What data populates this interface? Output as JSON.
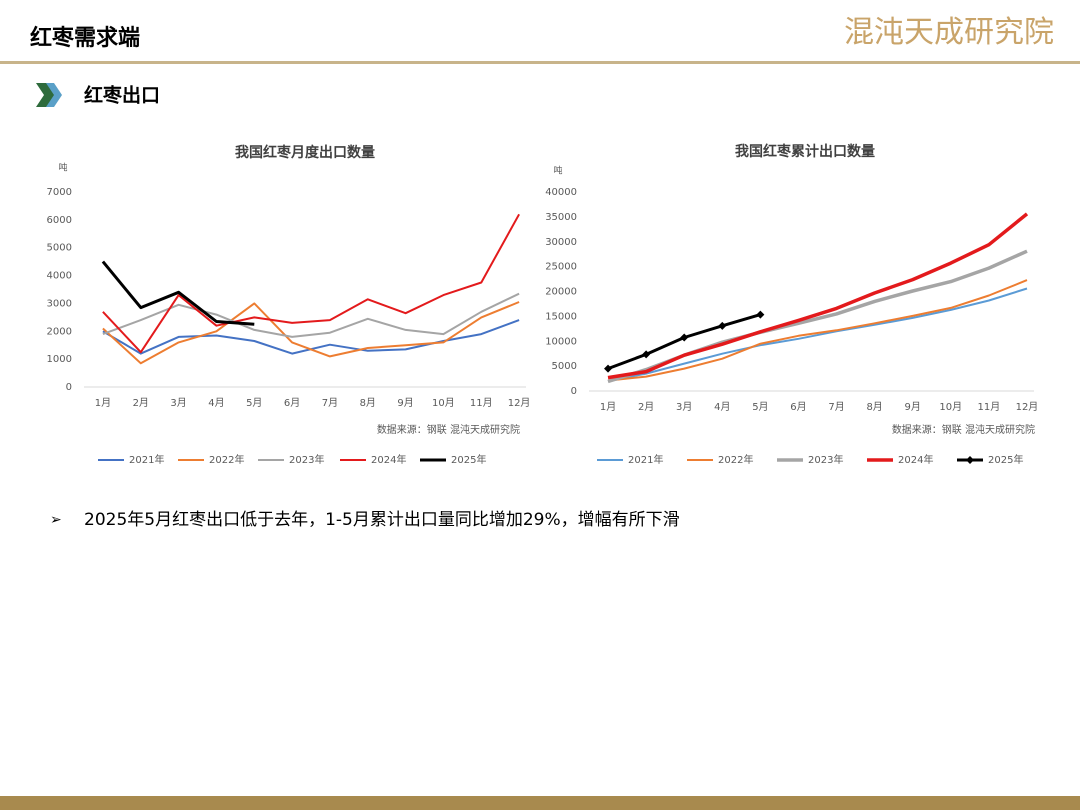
{
  "header": {
    "title": "红枣需求端",
    "logo": "混沌天成研究院"
  },
  "section": "红枣出口",
  "bullet": "2025年5月红枣出口低于去年，1-5月累计出口量同比增加29%，增幅有所下滑",
  "chart_data": [
    {
      "type": "line",
      "title": "我国红枣月度出口数量",
      "y_label": "吨",
      "source": "数据来源：钢联   混沌天成研究院",
      "categories": [
        "1月",
        "2月",
        "3月",
        "4月",
        "5月",
        "6月",
        "7月",
        "8月",
        "9月",
        "10月",
        "11月",
        "12月"
      ],
      "ylim": [
        0,
        7000
      ],
      "yticks": [
        0,
        1000,
        2000,
        3000,
        4000,
        5000,
        6000,
        7000
      ],
      "grid": false,
      "legend": "bottom",
      "series": [
        {
          "name": "2021年",
          "color": "#4472c4",
          "width": 2,
          "values": [
            2000,
            1200,
            1800,
            1850,
            1650,
            1200,
            1520,
            1300,
            1350,
            1650,
            1900,
            2400
          ]
        },
        {
          "name": "2022年",
          "color": "#ed7d31",
          "width": 2,
          "values": [
            2100,
            850,
            1600,
            2000,
            3000,
            1600,
            1100,
            1400,
            1500,
            1600,
            2500,
            3050
          ]
        },
        {
          "name": "2023年",
          "color": "#a5a5a5",
          "width": 2,
          "values": [
            1900,
            2400,
            2950,
            2600,
            2050,
            1800,
            1950,
            2450,
            2050,
            1900,
            2700,
            3350
          ]
        },
        {
          "name": "2024年",
          "color": "#e31a1c",
          "width": 2,
          "values": [
            2700,
            1250,
            3300,
            2200,
            2500,
            2300,
            2400,
            3150,
            2650,
            3300,
            3750,
            6200
          ]
        },
        {
          "name": "2025年",
          "color": "#000000",
          "width": 3,
          "values": [
            4500,
            2850,
            3400,
            2350,
            2250,
            null,
            null,
            null,
            null,
            null,
            null,
            null
          ]
        }
      ]
    },
    {
      "type": "line",
      "title": "我国红枣累计出口数量",
      "y_label": "吨",
      "source": "数据来源：钢联   混沌天成研究院",
      "categories": [
        "1月",
        "2月",
        "3月",
        "4月",
        "5月",
        "6月",
        "7月",
        "8月",
        "9月",
        "10月",
        "11月",
        "12月"
      ],
      "ylim": [
        0,
        40000
      ],
      "yticks": [
        0,
        5000,
        10000,
        15000,
        20000,
        25000,
        30000,
        35000,
        40000
      ],
      "grid": false,
      "legend": "bottom",
      "series": [
        {
          "name": "2021年",
          "color": "#5b9bd5",
          "width": 2,
          "values": [
            2000,
            3500,
            5500,
            7500,
            9200,
            10500,
            12000,
            13300,
            14700,
            16300,
            18200,
            20600
          ]
        },
        {
          "name": "2022年",
          "color": "#ed7d31",
          "width": 2,
          "values": [
            2100,
            2900,
            4500,
            6500,
            9500,
            11100,
            12200,
            13600,
            15100,
            16700,
            19200,
            22300
          ]
        },
        {
          "name": "2023年",
          "color": "#a5a5a5",
          "width": 3.5,
          "values": [
            1900,
            4300,
            7200,
            9800,
            11800,
            13600,
            15500,
            18000,
            20100,
            22000,
            24700,
            28100
          ]
        },
        {
          "name": "2024年",
          "color": "#e31a1c",
          "width": 3.5,
          "values": [
            2700,
            3900,
            7200,
            9400,
            11900,
            14200,
            16600,
            19700,
            22400,
            25700,
            29400,
            35600
          ]
        },
        {
          "name": "2025年",
          "color": "#000000",
          "width": 3,
          "marker": "diamond",
          "values": [
            4500,
            7350,
            10750,
            13100,
            15350,
            null,
            null,
            null,
            null,
            null,
            null,
            null
          ]
        }
      ]
    }
  ]
}
